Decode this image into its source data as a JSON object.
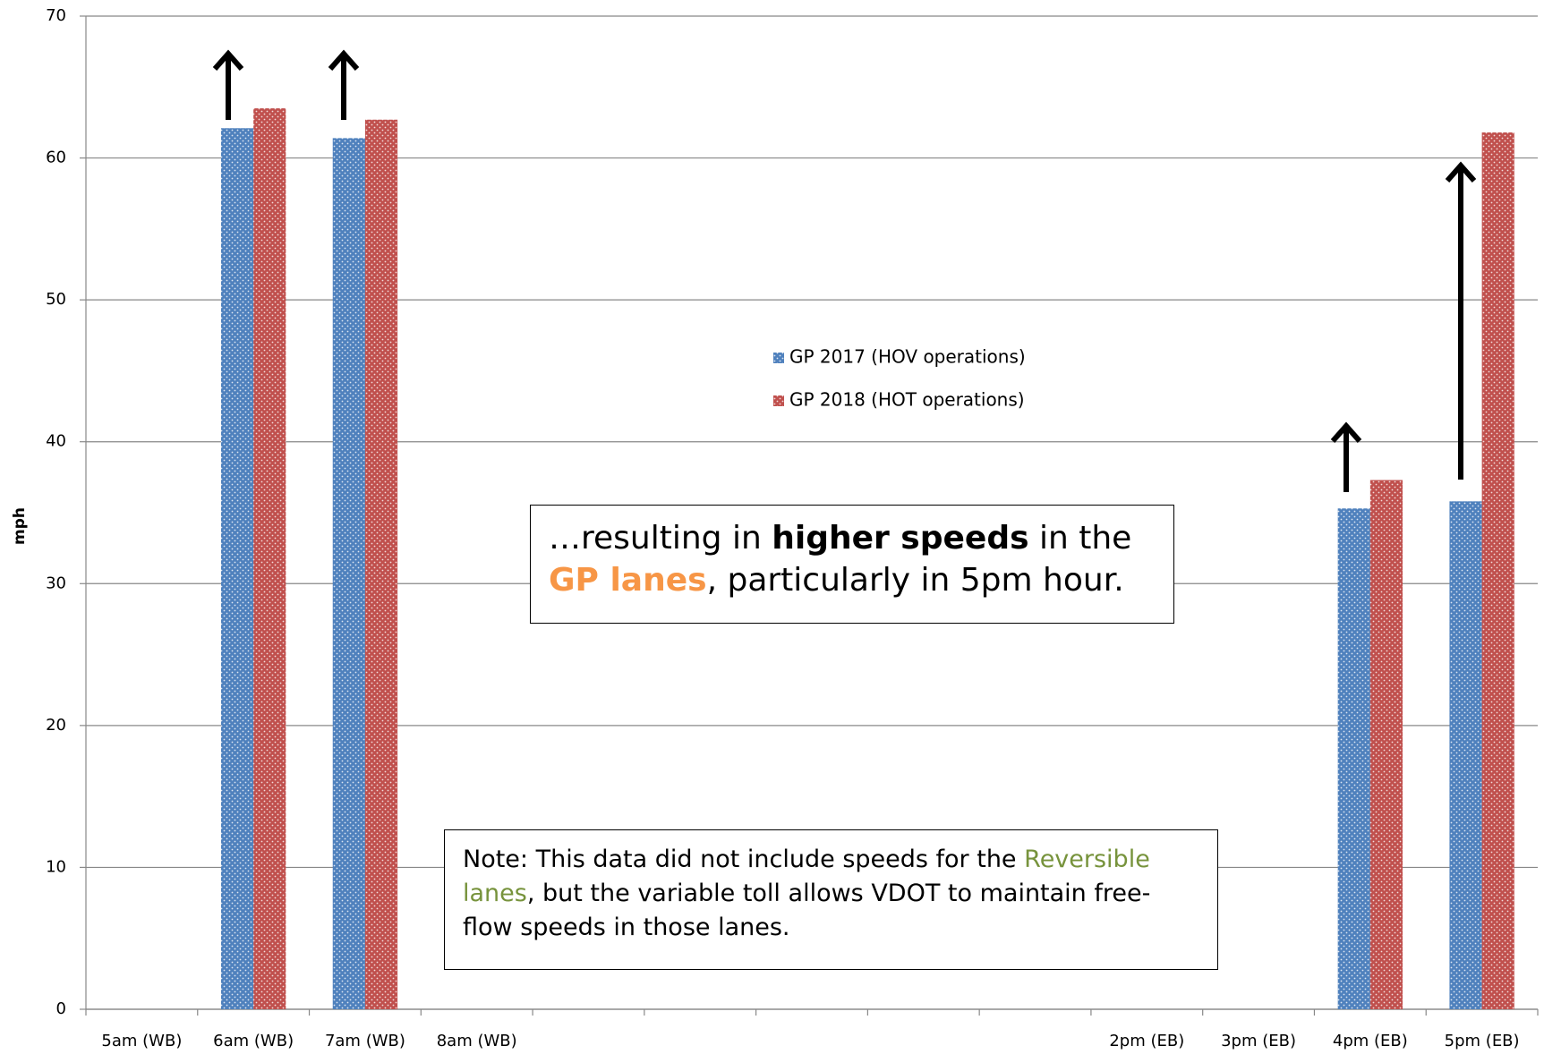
{
  "chart_data": {
    "type": "bar",
    "y_label": "mph",
    "categories": [
      "5am (WB)",
      "6am (WB)",
      "7am (WB)",
      "8am (WB)",
      null,
      null,
      null,
      null,
      null,
      "2pm (EB)",
      "3pm (EB)",
      "4pm (EB)",
      "5pm (EB)"
    ],
    "series": [
      {
        "name": "GP 2017 (HOV operations)",
        "color": "#4f81bd",
        "values": [
          null,
          62.1,
          61.4,
          null,
          null,
          null,
          null,
          null,
          null,
          null,
          null,
          35.3,
          35.8
        ]
      },
      {
        "name": "GP 2018 (HOT operations)",
        "color": "#c0504d",
        "values": [
          null,
          63.5,
          62.7,
          null,
          null,
          null,
          null,
          null,
          null,
          null,
          null,
          37.3,
          61.8
        ]
      }
    ],
    "ylim": [
      0,
      70
    ],
    "yticks": [
      0,
      10,
      20,
      30,
      40,
      50,
      60,
      70
    ],
    "grid": true,
    "callout": [
      "…resulting in ",
      "higher speeds",
      " in the ",
      "GP lanes",
      ", particularly in 5pm hour."
    ],
    "note": [
      "Note: This data did not include speeds for the ",
      "Reversible lanes",
      ", but the variable toll allows VDOT to maintain free-flow speeds in those lanes."
    ]
  }
}
